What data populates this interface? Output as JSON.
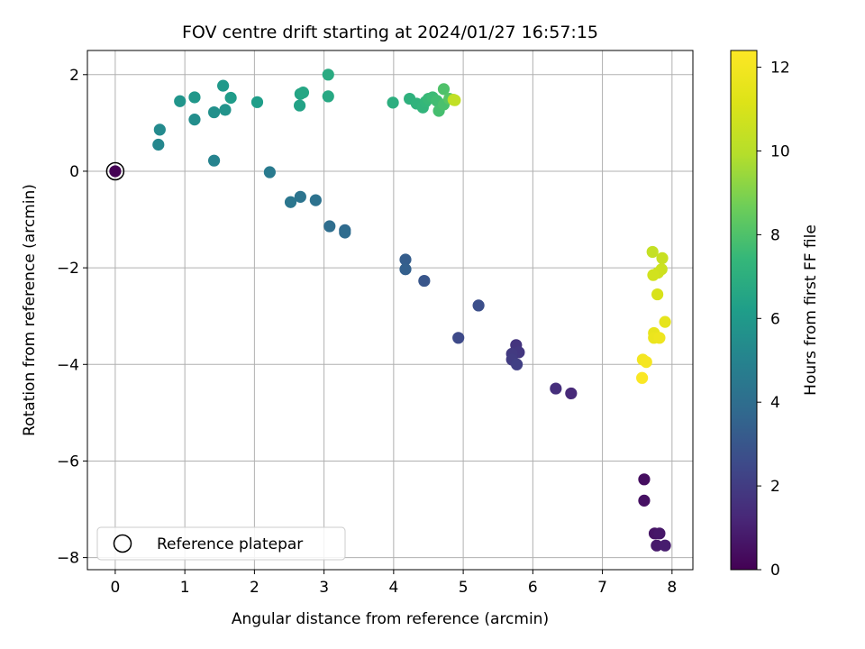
{
  "chart_data": {
    "type": "scatter",
    "title": "FOV centre drift starting at 2024/01/27 16:57:15",
    "xlabel": "Angular distance from reference (arcmin)",
    "ylabel": "Rotation from reference (arcmin)",
    "xlim": [
      -0.4,
      8.3
    ],
    "ylim": [
      -8.25,
      2.5
    ],
    "xticks": [
      0,
      1,
      2,
      3,
      4,
      5,
      6,
      7,
      8
    ],
    "yticks": [
      -8,
      -6,
      -4,
      -2,
      0,
      2
    ],
    "grid": true,
    "legend": {
      "placement": "lower-left",
      "entries": [
        "Reference platepar"
      ]
    },
    "reference_point": {
      "x": 0,
      "y": 0
    },
    "colorbar": {
      "label": "Hours from first FF file",
      "range": [
        0,
        12.4
      ],
      "ticks": [
        0,
        2,
        4,
        6,
        8,
        10,
        12
      ],
      "colormap": "viridis"
    },
    "points": [
      {
        "x": 0.0,
        "y": 0.0,
        "h": 0.0
      },
      {
        "x": 7.6,
        "y": -6.38,
        "h": 0.4
      },
      {
        "x": 7.6,
        "y": -6.82,
        "h": 0.5
      },
      {
        "x": 7.75,
        "y": -7.5,
        "h": 0.6
      },
      {
        "x": 7.82,
        "y": -7.5,
        "h": 0.7
      },
      {
        "x": 7.78,
        "y": -7.75,
        "h": 0.8
      },
      {
        "x": 7.9,
        "y": -7.75,
        "h": 0.9
      },
      {
        "x": 6.55,
        "y": -4.6,
        "h": 1.3
      },
      {
        "x": 6.33,
        "y": -4.5,
        "h": 1.5
      },
      {
        "x": 5.76,
        "y": -3.6,
        "h": 1.7
      },
      {
        "x": 5.8,
        "y": -3.75,
        "h": 1.8
      },
      {
        "x": 5.7,
        "y": -3.78,
        "h": 1.9
      },
      {
        "x": 5.7,
        "y": -3.9,
        "h": 2.0
      },
      {
        "x": 5.77,
        "y": -4.0,
        "h": 2.1
      },
      {
        "x": 4.93,
        "y": -3.45,
        "h": 2.5
      },
      {
        "x": 5.22,
        "y": -2.78,
        "h": 2.7
      },
      {
        "x": 4.44,
        "y": -2.27,
        "h": 3.0
      },
      {
        "x": 4.17,
        "y": -1.83,
        "h": 3.3
      },
      {
        "x": 4.17,
        "y": -2.03,
        "h": 3.4
      },
      {
        "x": 3.3,
        "y": -1.22,
        "h": 3.8
      },
      {
        "x": 3.3,
        "y": -1.27,
        "h": 3.9
      },
      {
        "x": 3.08,
        "y": -1.14,
        "h": 4.0
      },
      {
        "x": 2.88,
        "y": -0.6,
        "h": 4.2
      },
      {
        "x": 2.66,
        "y": -0.53,
        "h": 4.3
      },
      {
        "x": 2.52,
        "y": -0.64,
        "h": 4.4
      },
      {
        "x": 2.22,
        "y": -0.02,
        "h": 4.6
      },
      {
        "x": 1.42,
        "y": 0.22,
        "h": 5.0
      },
      {
        "x": 0.62,
        "y": 0.55,
        "h": 5.2
      },
      {
        "x": 0.64,
        "y": 0.86,
        "h": 5.3
      },
      {
        "x": 1.14,
        "y": 1.07,
        "h": 5.5
      },
      {
        "x": 1.42,
        "y": 1.22,
        "h": 5.6
      },
      {
        "x": 1.58,
        "y": 1.27,
        "h": 5.7
      },
      {
        "x": 0.93,
        "y": 1.45,
        "h": 5.8
      },
      {
        "x": 1.14,
        "y": 1.53,
        "h": 5.9
      },
      {
        "x": 1.55,
        "y": 1.77,
        "h": 6.0
      },
      {
        "x": 1.66,
        "y": 1.52,
        "h": 6.1
      },
      {
        "x": 2.04,
        "y": 1.43,
        "h": 6.2
      },
      {
        "x": 2.65,
        "y": 1.36,
        "h": 6.4
      },
      {
        "x": 2.66,
        "y": 1.6,
        "h": 6.5
      },
      {
        "x": 2.7,
        "y": 1.63,
        "h": 6.6
      },
      {
        "x": 3.06,
        "y": 1.55,
        "h": 6.7
      },
      {
        "x": 3.06,
        "y": 2.0,
        "h": 6.8
      },
      {
        "x": 3.99,
        "y": 1.42,
        "h": 7.0
      },
      {
        "x": 4.23,
        "y": 1.5,
        "h": 7.1
      },
      {
        "x": 4.33,
        "y": 1.4,
        "h": 7.2
      },
      {
        "x": 4.42,
        "y": 1.32,
        "h": 7.3
      },
      {
        "x": 4.46,
        "y": 1.44,
        "h": 7.4
      },
      {
        "x": 4.5,
        "y": 1.5,
        "h": 7.5
      },
      {
        "x": 4.56,
        "y": 1.53,
        "h": 7.6
      },
      {
        "x": 4.62,
        "y": 1.46,
        "h": 7.7
      },
      {
        "x": 4.65,
        "y": 1.25,
        "h": 7.8
      },
      {
        "x": 4.72,
        "y": 1.38,
        "h": 7.9
      },
      {
        "x": 4.72,
        "y": 1.7,
        "h": 8.0
      },
      {
        "x": 4.8,
        "y": 1.5,
        "h": 8.2
      },
      {
        "x": 4.86,
        "y": 1.48,
        "h": 10.0
      },
      {
        "x": 4.88,
        "y": 1.47,
        "h": 10.3
      },
      {
        "x": 7.72,
        "y": -1.67,
        "h": 10.4
      },
      {
        "x": 7.86,
        "y": -1.8,
        "h": 10.5
      },
      {
        "x": 7.85,
        "y": -2.03,
        "h": 10.6
      },
      {
        "x": 7.8,
        "y": -2.1,
        "h": 10.7
      },
      {
        "x": 7.73,
        "y": -2.15,
        "h": 10.8
      },
      {
        "x": 7.79,
        "y": -2.55,
        "h": 11.0
      },
      {
        "x": 7.9,
        "y": -3.12,
        "h": 11.5
      },
      {
        "x": 7.74,
        "y": -3.35,
        "h": 11.6
      },
      {
        "x": 7.74,
        "y": -3.45,
        "h": 11.7
      },
      {
        "x": 7.82,
        "y": -3.45,
        "h": 11.8
      },
      {
        "x": 7.58,
        "y": -3.9,
        "h": 12.0
      },
      {
        "x": 7.63,
        "y": -3.95,
        "h": 12.1
      },
      {
        "x": 7.57,
        "y": -4.28,
        "h": 12.3
      }
    ]
  }
}
